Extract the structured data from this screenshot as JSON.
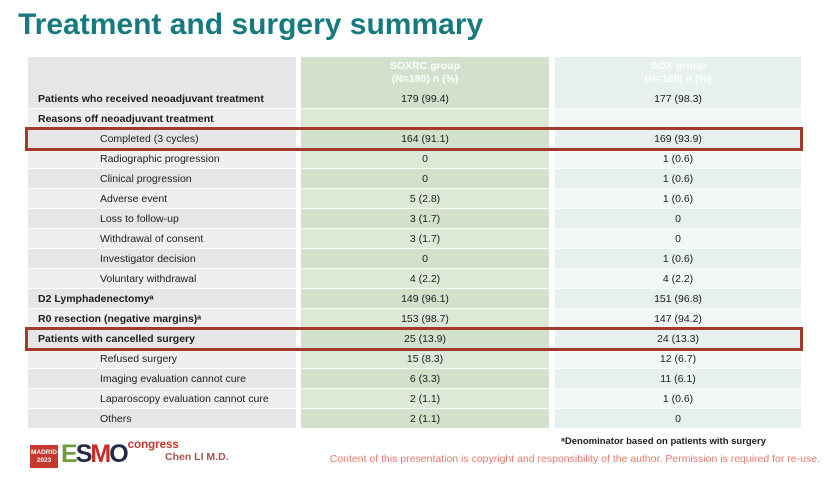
{
  "title": "Treatment and surgery summary",
  "table": {
    "header": {
      "soxrc_line1": "SOXRC group",
      "soxrc_line2": "(N=180)  n (%)",
      "sox_line1": "SOX group",
      "sox_line2": "(N=180)  n (%)"
    },
    "rows": [
      {
        "label": "Patients who received neoadjuvant treatment",
        "soxrc": "179 (99.4)",
        "sox": "177 (98.3)"
      },
      {
        "label": "Reasons off neoadjuvant treatment",
        "soxrc": "",
        "sox": ""
      },
      {
        "label": "Completed (3 cycles)",
        "soxrc": "164 (91.1)",
        "sox": "169 (93.9)"
      },
      {
        "label": "Radiographic progression",
        "soxrc": "0",
        "sox": "1 (0.6)"
      },
      {
        "label": "Clinical progression",
        "soxrc": "0",
        "sox": "1 (0.6)"
      },
      {
        "label": "Adverse event",
        "soxrc": "5 (2.8)",
        "sox": "1 (0.6)"
      },
      {
        "label": "Loss to follow-up",
        "soxrc": "3 (1.7)",
        "sox": "0"
      },
      {
        "label": "Withdrawal of consent",
        "soxrc": "3 (1.7)",
        "sox": "0"
      },
      {
        "label": "Investigator decision",
        "soxrc": "0",
        "sox": "1 (0.6)"
      },
      {
        "label": "Voluntary withdrawal",
        "soxrc": "4 (2.2)",
        "sox": "4 (2.2)"
      },
      {
        "label": "D2 Lymphadenectomyᵃ",
        "soxrc": "149 (96.1)",
        "sox": "151 (96.8)"
      },
      {
        "label": "R0 resection (negative margins)ᵃ",
        "soxrc": "153 (98.7)",
        "sox": "147 (94.2)"
      },
      {
        "label": "Patients with cancelled surgery",
        "soxrc": "25 (13.9)",
        "sox": "24 (13.3)"
      },
      {
        "label": "Refused surgery",
        "soxrc": "15 (8.3)",
        "sox": "12 (6.7)"
      },
      {
        "label": "Imaging evaluation cannot cure",
        "soxrc": "6 (3.3)",
        "sox": "11 (6.1)"
      },
      {
        "label": "Laparoscopy evaluation cannot cure",
        "soxrc": "2 (1.1)",
        "sox": "1 (0.6)"
      },
      {
        "label": "Others",
        "soxrc": "2 (1.1)",
        "sox": "0"
      }
    ]
  },
  "footer": {
    "logo": {
      "badge_line1": "MADRID",
      "badge_line2": "2023",
      "letters": [
        "E",
        "S",
        "M",
        "O"
      ],
      "congress": "congress"
    },
    "author": "Chen LI M.D.",
    "footnote": "ᵃDenominator based on patients with surgery",
    "copyright": "Content of this presentation is copyright and responsibility of the author. Permission is required for re-use."
  },
  "colors": {
    "title_teal": "#177a80",
    "header_green": "#17a24b",
    "header_teal": "#156b74",
    "highlight_red": "#a43a2a",
    "logo_red": "#c8372d",
    "author_red": "#a5544a",
    "copyright_pink": "#e8796d"
  }
}
